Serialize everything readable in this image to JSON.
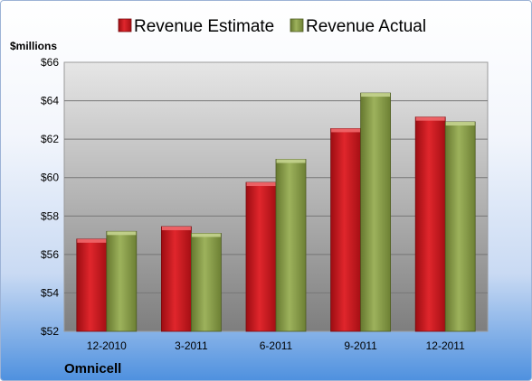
{
  "chart_data": {
    "type": "bar",
    "categories": [
      "12-2010",
      "3-2011",
      "6-2011",
      "9-2011",
      "12-2011"
    ],
    "series": [
      {
        "name": "Revenue Estimate",
        "color": "#cc1a1f",
        "values": [
          56.8,
          57.45,
          59.75,
          62.55,
          63.15
        ]
      },
      {
        "name": "Revenue Actual",
        "color": "#8ea24f",
        "values": [
          57.2,
          57.1,
          60.95,
          64.4,
          62.9
        ]
      }
    ],
    "ylabel": "$millions",
    "ylim": [
      52,
      66
    ],
    "yticks": [
      52,
      54,
      56,
      58,
      60,
      62,
      64,
      66
    ],
    "ytick_labels": [
      "$52",
      "$54",
      "$56",
      "$58",
      "$60",
      "$62",
      "$64",
      "$66"
    ],
    "grid": true,
    "legend": "top-center",
    "company": "Omnicell"
  }
}
